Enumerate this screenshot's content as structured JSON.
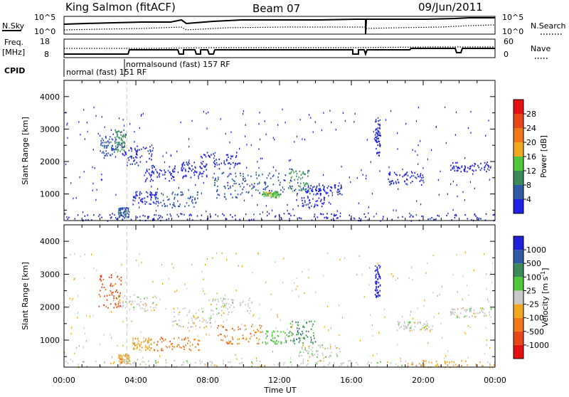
{
  "header": {
    "station": "King Salmon (fitACF)",
    "beam": "Beam 07",
    "date": "09/Jun/2011"
  },
  "nsky_panel": {
    "left_label": "N.Sky",
    "right_label": "N.Search",
    "ticks_left": [
      "10^5",
      "10^0"
    ],
    "ticks_right": [
      "10^5",
      "10^0"
    ]
  },
  "freq_panel": {
    "left_label_1": "Freq.",
    "left_label_2": "[MHz]",
    "right_label": "Nave",
    "ticks_left": [
      "18",
      "8"
    ],
    "ticks_right": [
      "60",
      "0"
    ]
  },
  "cpid": {
    "label": "CPID",
    "mode_1": "normal (fast) 151 RF",
    "mode_2": "normalsound (fast) 157 RF"
  },
  "axes": {
    "x_label": "Time UT",
    "x_ticks": [
      "00:00",
      "04:00",
      "08:00",
      "12:00",
      "16:00",
      "20:00",
      "00:00"
    ],
    "y_label": "Slant Range [km]",
    "y_ticks": [
      "1000",
      "2000",
      "3000",
      "4000"
    ],
    "y_range": [
      180,
      4500
    ]
  },
  "power_scale": {
    "label": "Power [dB]",
    "ticks": [
      "4",
      "8",
      "12",
      "16",
      "20",
      "24",
      "28"
    ],
    "colors": [
      "#2020e6",
      "#2e5aa6",
      "#3c8a5a",
      "#50c83c",
      "#f0a820",
      "#f07818",
      "#e84818",
      "#e61010"
    ]
  },
  "velocity_scale": {
    "label": "Velocity [m s",
    "label_sup": "-1",
    "label_end": "]",
    "ticks": [
      "1000",
      "500",
      "100",
      "25",
      "-25",
      "-100",
      "-500",
      "-1000"
    ],
    "colors": [
      "#2020d8",
      "#2e5aa8",
      "#3c8a5a",
      "#50c83c",
      "#c8c8c8",
      "#f0a820",
      "#f07818",
      "#e84818",
      "#e61010"
    ]
  },
  "chart_data": [
    {
      "type": "heatmap",
      "title": "Power",
      "x_range_hours": [
        0,
        24
      ],
      "ylim": [
        180,
        4500
      ],
      "patches": [
        {
          "t": [
            1.9,
            3.0
          ],
          "r": [
            2200,
            2800
          ],
          "level": 1
        },
        {
          "t": [
            2.8,
            3.4
          ],
          "r": [
            2300,
            3000
          ],
          "level": 2
        },
        {
          "t": [
            3.2,
            4.9
          ],
          "r": [
            1900,
            2500
          ],
          "level": 0
        },
        {
          "t": [
            3.8,
            5.2
          ],
          "r": [
            700,
            1100
          ],
          "level": 0
        },
        {
          "t": [
            4.5,
            6.2
          ],
          "r": [
            1400,
            1900
          ],
          "level": 0
        },
        {
          "t": [
            5.0,
            7.5
          ],
          "r": [
            600,
            1100
          ],
          "level": 1
        },
        {
          "t": [
            6.5,
            8.0
          ],
          "r": [
            1500,
            2000
          ],
          "level": 0
        },
        {
          "t": [
            7.5,
            9.8
          ],
          "r": [
            1800,
            2300
          ],
          "level": 0
        },
        {
          "t": [
            8.3,
            10.0
          ],
          "r": [
            900,
            1700
          ],
          "level": 1
        },
        {
          "t": [
            10.0,
            12.5
          ],
          "r": [
            1000,
            1700
          ],
          "level": 1
        },
        {
          "t": [
            11.0,
            12.0
          ],
          "r": [
            900,
            1100
          ],
          "level": 3
        },
        {
          "t": [
            12.5,
            13.6
          ],
          "r": [
            1100,
            1800
          ],
          "level": 2
        },
        {
          "t": [
            12.8,
            14.5
          ],
          "r": [
            600,
            1200
          ],
          "level": 0
        },
        {
          "t": [
            13.5,
            15.5
          ],
          "r": [
            1000,
            1300
          ],
          "level": 0
        },
        {
          "t": [
            17.3,
            17.6
          ],
          "r": [
            2200,
            3300
          ],
          "level": 0
        },
        {
          "t": [
            18.0,
            20.0
          ],
          "r": [
            1300,
            1700
          ],
          "level": 0
        },
        {
          "t": [
            21.5,
            23.8
          ],
          "r": [
            1700,
            2000
          ],
          "level": 0
        },
        {
          "t": [
            0.0,
            24.0
          ],
          "r": [
            190,
            420
          ],
          "level": 0
        },
        {
          "t": [
            3.0,
            3.6
          ],
          "r": [
            300,
            600
          ],
          "level": 1
        }
      ]
    },
    {
      "type": "heatmap",
      "title": "Velocity",
      "x_range_hours": [
        0,
        24
      ],
      "ylim": [
        180,
        4500
      ],
      "patches": [
        {
          "t": [
            1.9,
            3.2
          ],
          "r": [
            2000,
            3000
          ],
          "level": 7
        },
        {
          "t": [
            3.0,
            5.2
          ],
          "r": [
            1900,
            2400
          ],
          "level": 4
        },
        {
          "t": [
            3.8,
            5.0
          ],
          "r": [
            700,
            1100
          ],
          "level": 5
        },
        {
          "t": [
            5.0,
            7.5
          ],
          "r": [
            700,
            1100
          ],
          "level": 6
        },
        {
          "t": [
            6.0,
            8.2
          ],
          "r": [
            1400,
            2000
          ],
          "level": 4
        },
        {
          "t": [
            8.0,
            10.5
          ],
          "r": [
            1800,
            2300
          ],
          "level": 4
        },
        {
          "t": [
            8.5,
            11.0
          ],
          "r": [
            900,
            1500
          ],
          "level": 6
        },
        {
          "t": [
            11.0,
            12.8
          ],
          "r": [
            900,
            1300
          ],
          "level": 3
        },
        {
          "t": [
            12.5,
            14.0
          ],
          "r": [
            900,
            1600
          ],
          "level": 2
        },
        {
          "t": [
            13.0,
            15.5
          ],
          "r": [
            500,
            900
          ],
          "level": 4
        },
        {
          "t": [
            17.3,
            17.6
          ],
          "r": [
            2300,
            3300
          ],
          "level": 0
        },
        {
          "t": [
            18.5,
            20.5
          ],
          "r": [
            1300,
            1600
          ],
          "level": 4
        },
        {
          "t": [
            19.0,
            24.0
          ],
          "r": [
            190,
            400
          ],
          "level": 5
        },
        {
          "t": [
            0.0,
            19.0
          ],
          "r": [
            190,
            400
          ],
          "level": 4
        },
        {
          "t": [
            3.0,
            3.6
          ],
          "r": [
            300,
            600
          ],
          "level": 5
        },
        {
          "t": [
            21.5,
            23.8
          ],
          "r": [
            1700,
            2000
          ],
          "level": 4
        }
      ]
    }
  ]
}
